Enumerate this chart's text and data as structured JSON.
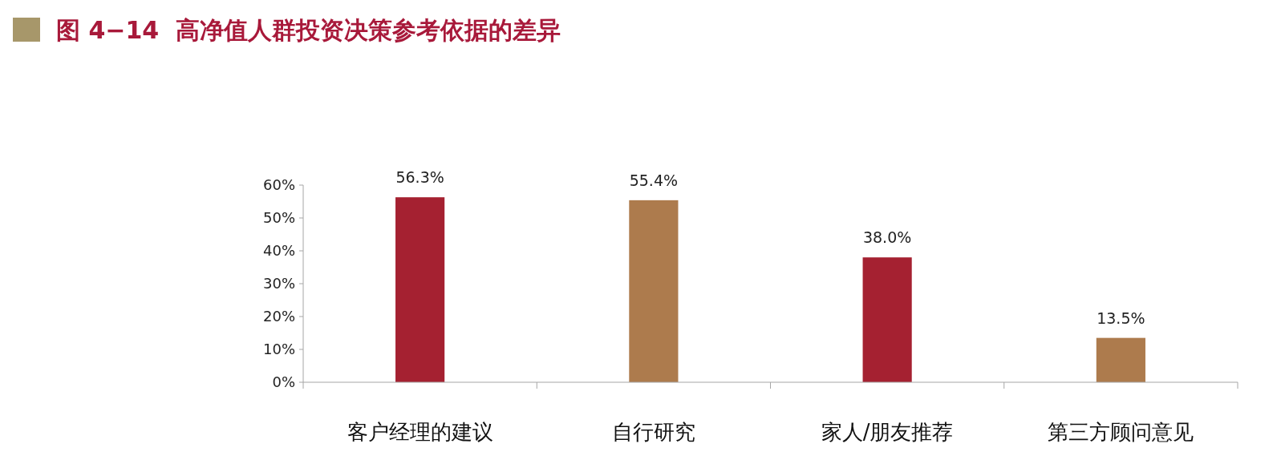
{
  "chart_data": {
    "type": "bar",
    "title": "图 4−14  高净值人群投资决策参考依据的差异",
    "categories": [
      "客户经理的建议",
      "自行研究",
      "家人/朋友推荐",
      "第三方顾问意见"
    ],
    "values": [
      56.3,
      55.4,
      38.0,
      13.5
    ],
    "colors": [
      "#a52131",
      "#ad7b4d",
      "#a52131",
      "#ad7b4d"
    ],
    "value_labels": [
      "56.3%",
      "55.4%",
      "38.0%",
      "13.5%"
    ],
    "ylim": [
      0,
      60
    ],
    "yticks": [
      {
        "value": 0,
        "label": "0%"
      },
      {
        "value": 10,
        "label": "10%"
      },
      {
        "value": 20,
        "label": "20%"
      },
      {
        "value": 30,
        "label": "30%"
      },
      {
        "value": 40,
        "label": "40%"
      },
      {
        "value": 50,
        "label": "50%"
      },
      {
        "value": 60,
        "label": "60%"
      }
    ],
    "grid": false
  }
}
